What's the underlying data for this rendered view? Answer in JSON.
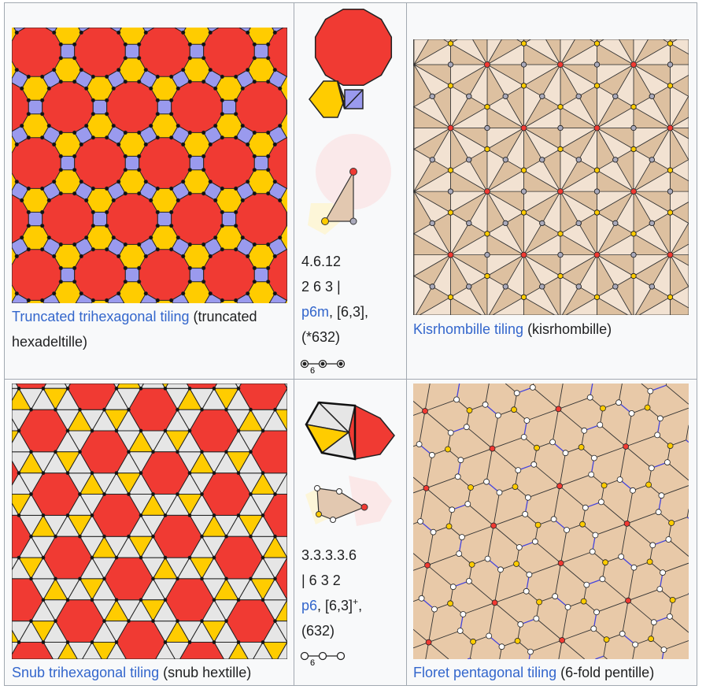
{
  "colors": {
    "red": "#f03a33",
    "yellow": "#ffcc00",
    "blue": "#9a9aee",
    "link": "#3366cc",
    "tan_dark": "#ddc0a0",
    "tan_light": "#f2e2d2",
    "gray": "#e6e6e6"
  },
  "rows": [
    {
      "tiling_link": "Truncated trihexagonal tiling",
      "tiling_rest": " (truncated hexadeltille)",
      "vertex_config": "4.6.12",
      "wythoff": "2 6 3 |",
      "symmetry_link": "p6m",
      "symmetry_rest": ", [6,3],",
      "orbifold": "(*632)",
      "coxeter_label": "6",
      "dual_link": "Kisrhombille tiling",
      "dual_rest": " (kisrhombille)"
    },
    {
      "tiling_link": "Snub trihexagonal tiling",
      "tiling_rest": " (snub hextille)",
      "vertex_config": "3.3.3.3.6",
      "wythoff": "| 6 3 2",
      "symmetry_link": "p6",
      "symmetry_rest": ", [6,3]",
      "symmetry_sup": "+",
      "symmetry_tail": ",",
      "orbifold": "(632)",
      "coxeter_label": "6",
      "dual_link": "Floret pentagonal tiling",
      "dual_rest": " (6-fold pentille)"
    }
  ]
}
